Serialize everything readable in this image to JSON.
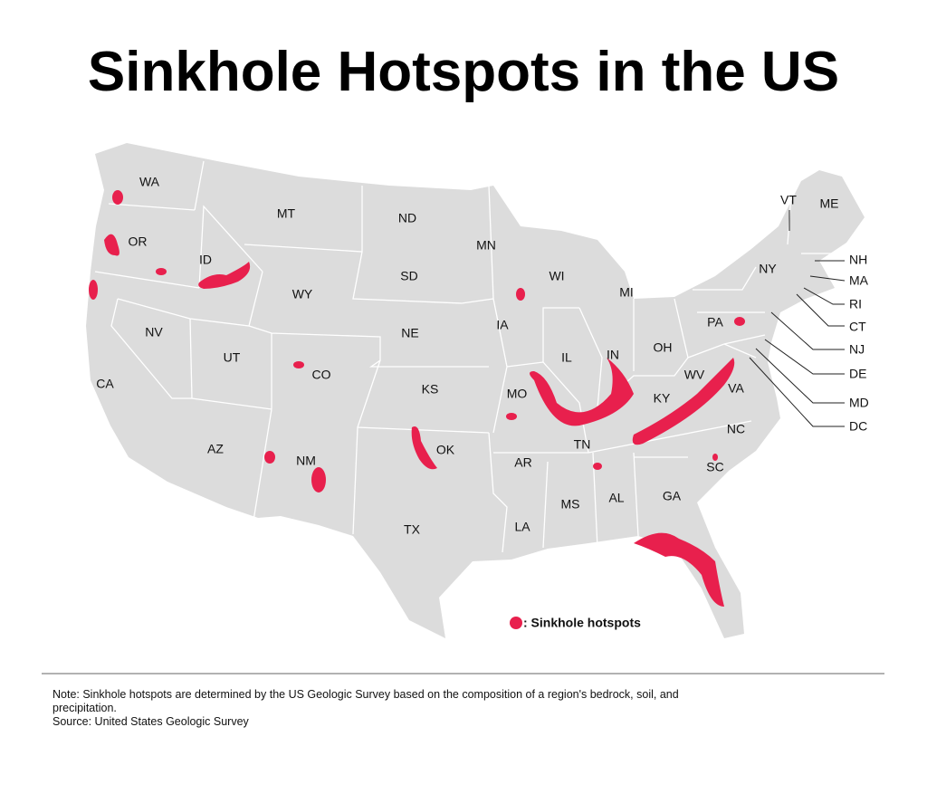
{
  "title": "Sinkhole Hotspots in the US",
  "states": [
    "WA",
    "OR",
    "NV",
    "CA",
    "ID",
    "MT",
    "WY",
    "UT",
    "CO",
    "AZ",
    "NM",
    "ND",
    "SD",
    "NE",
    "KS",
    "OK",
    "TX",
    "MN",
    "IA",
    "MO",
    "AR",
    "LA",
    "WI",
    "IL",
    "MS",
    "MI",
    "IN",
    "TN",
    "AL",
    "OH",
    "KY",
    "GA",
    "WV",
    "VA",
    "PA",
    "NC",
    "SC",
    "NY",
    "ME",
    "VT",
    "NH",
    "MA",
    "RI",
    "CT",
    "NJ",
    "DE",
    "MD",
    "DC"
  ],
  "legend": {
    "label": ": Sinkhole hotspots"
  },
  "note": [
    "Note: Sinkhole hotspots are determined by the US Geologic Survey based on the composition of a region's bedrock, soil, and",
    "precipitation."
  ],
  "source": "Source: United States Geologic Survey"
}
